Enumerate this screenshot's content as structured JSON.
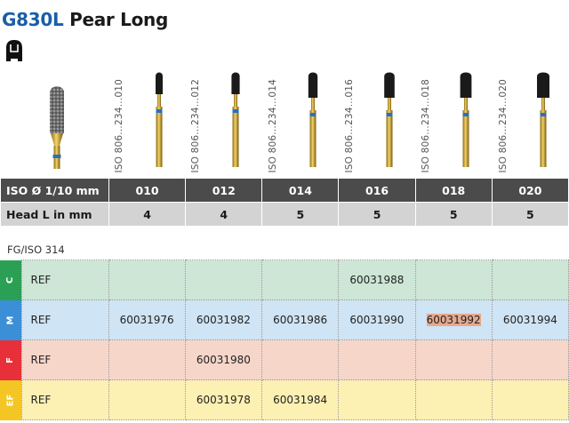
{
  "header": {
    "code": "G830L",
    "name": "Pear Long"
  },
  "icons": {
    "shape": "pear-shape-icon"
  },
  "colors": {
    "brand": "#1a5ea8",
    "header_dark": "#4b4b4b",
    "header_light": "#d3d3d3",
    "grit_C": {
      "tab": "#2ba055",
      "bg": "#cde6d6"
    },
    "grit_M": {
      "tab": "#3a8fd6",
      "bg": "#cfe4f4"
    },
    "grit_F": {
      "tab": "#e8303a",
      "bg": "#f6d6c9"
    },
    "grit_EF": {
      "tab": "#f3c623",
      "bg": "#fdf0b3"
    },
    "highlight": "#e6a98e"
  },
  "burs": [
    {
      "iso": "ISO 806…234…010"
    },
    {
      "iso": "ISO 806…234…012"
    },
    {
      "iso": "ISO 806…234…014"
    },
    {
      "iso": "ISO 806…234…016"
    },
    {
      "iso": "ISO 806…234…018"
    },
    {
      "iso": "ISO 806…234…020"
    }
  ],
  "spec_table": {
    "row1_label": "ISO Ø 1/10 mm",
    "row1_values": [
      "010",
      "012",
      "014",
      "016",
      "018",
      "020"
    ],
    "row2_label": "Head L in mm",
    "row2_values": [
      "4",
      "4",
      "5",
      "5",
      "5",
      "5"
    ]
  },
  "standard": "FG/ISO 314",
  "ref_table": {
    "rows": [
      {
        "grit": "C",
        "label": "REF",
        "cells": [
          "",
          "",
          "",
          "60031988",
          "",
          ""
        ]
      },
      {
        "grit": "M",
        "label": "REF",
        "cells": [
          "60031976",
          "60031982",
          "60031986",
          "60031990",
          "60031992",
          "60031994"
        ]
      },
      {
        "grit": "F",
        "label": "REF",
        "cells": [
          "",
          "60031980",
          "",
          "",
          "",
          ""
        ]
      },
      {
        "grit": "EF",
        "label": "REF",
        "cells": [
          "",
          "60031978",
          "60031984",
          "",
          "",
          ""
        ]
      }
    ],
    "highlighted_ref": "60031992"
  }
}
